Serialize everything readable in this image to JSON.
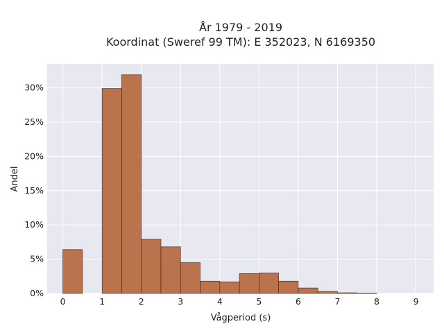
{
  "chart_data": {
    "type": "bar",
    "title_line1": "År 1979 - 2019",
    "title_line2": "Koordinat (Sweref 99 TM): E 352023, N 6169350",
    "xlabel": "Vågperiod (s)",
    "ylabel": "Andel",
    "xlim": [
      -0.4,
      9.45
    ],
    "ylim": [
      0,
      33.5
    ],
    "x_ticks": [
      0,
      1,
      2,
      3,
      4,
      5,
      6,
      7,
      8,
      9
    ],
    "x_tick_labels": [
      "0",
      "1",
      "2",
      "3",
      "4",
      "5",
      "6",
      "7",
      "8",
      "9"
    ],
    "y_ticks": [
      0,
      5,
      10,
      15,
      20,
      25,
      30
    ],
    "y_tick_labels": [
      "0%",
      "5%",
      "10%",
      "15%",
      "20%",
      "25%",
      "30%"
    ],
    "bin_width": 0.5,
    "bins": [
      {
        "x0": 0.0,
        "value": 6.4
      },
      {
        "x0": 0.5,
        "value": 0.0
      },
      {
        "x0": 1.0,
        "value": 29.9
      },
      {
        "x0": 1.5,
        "value": 31.9
      },
      {
        "x0": 2.0,
        "value": 7.9
      },
      {
        "x0": 2.5,
        "value": 6.8
      },
      {
        "x0": 3.0,
        "value": 4.5
      },
      {
        "x0": 3.5,
        "value": 1.8
      },
      {
        "x0": 4.0,
        "value": 1.7
      },
      {
        "x0": 4.5,
        "value": 2.9
      },
      {
        "x0": 5.0,
        "value": 3.0
      },
      {
        "x0": 5.5,
        "value": 1.8
      },
      {
        "x0": 6.0,
        "value": 0.8
      },
      {
        "x0": 6.5,
        "value": 0.3
      },
      {
        "x0": 7.0,
        "value": 0.1
      },
      {
        "x0": 7.5,
        "value": 0.05
      },
      {
        "x0": 8.0,
        "value": 0.0
      }
    ],
    "bar_color": "#b86d45",
    "plot_background": "#e8e8f1",
    "grid": true
  }
}
